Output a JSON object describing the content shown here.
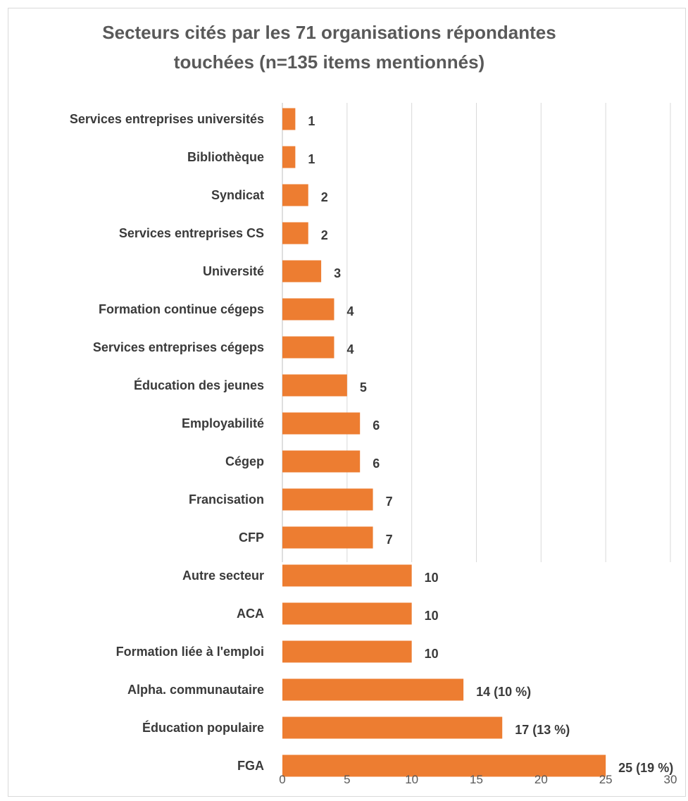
{
  "chart_data": {
    "type": "bar",
    "orientation": "horizontal",
    "title": "Secteurs cités par les 71 organisations répondantes\ntouchées (n=135 items mentionnés)",
    "xlabel": "",
    "ylabel": "",
    "xlim": [
      0,
      30
    ],
    "xticks": [
      0,
      5,
      10,
      15,
      20,
      25,
      30
    ],
    "grid": "vertical",
    "legend": "none",
    "bar_color": "#ED7D31",
    "categories": [
      "Services entreprises universités",
      "Bibliothèque",
      "Syndicat",
      "Services entreprises CS",
      "Université",
      "Formation continue cégeps",
      "Services entreprises cégeps",
      "Éducation des jeunes",
      "Employabilité",
      "Cégep",
      "Francisation",
      "CFP",
      "Autre secteur",
      "ACA",
      "Formation liée à l'emploi",
      "Alpha. communautaire",
      "Éducation populaire",
      "FGA"
    ],
    "values": [
      1,
      1,
      2,
      2,
      3,
      4,
      4,
      5,
      6,
      6,
      7,
      7,
      10,
      10,
      10,
      14,
      17,
      25
    ],
    "data_labels": [
      "1",
      "1",
      "2",
      "2",
      "3",
      "4",
      "4",
      "5",
      "6",
      "6",
      "7",
      "7",
      "10",
      "10",
      "10",
      "14 (10 %)",
      "17 (13 %)",
      "25 (19 %)"
    ]
  }
}
